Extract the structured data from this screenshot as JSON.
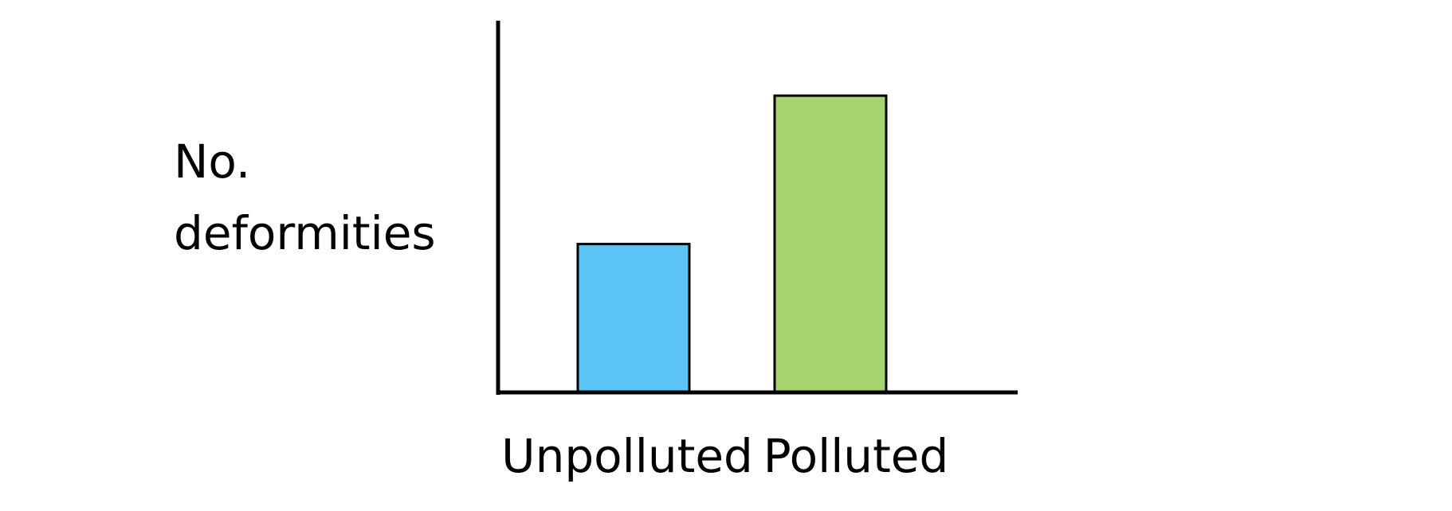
{
  "chart_data": {
    "type": "bar",
    "title": "",
    "ylabel_lines": [
      "No.",
      "deformities"
    ],
    "xlabel": "",
    "categories": [
      "Unpolluted",
      "Polluted"
    ],
    "values": [
      2,
      4
    ],
    "ylim": [
      0,
      5
    ],
    "colors": [
      "#5BC4F5",
      "#A5D36F"
    ],
    "grid": false,
    "legend": "none"
  }
}
